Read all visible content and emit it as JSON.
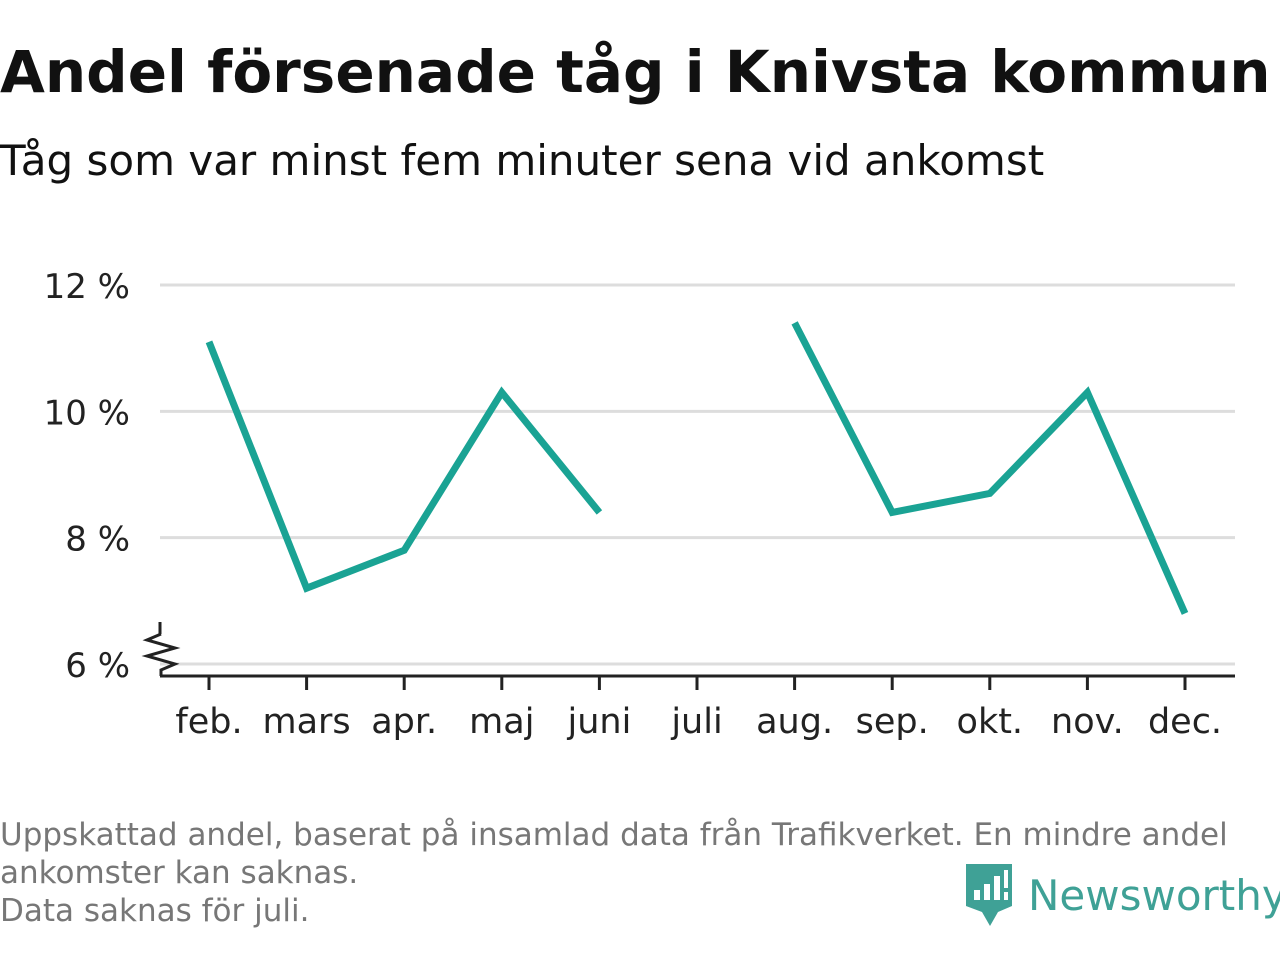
{
  "title": "Andel försenade tåg i Knivsta kommun",
  "subtitle": "Tåg som var minst fem minuter sena vid ankomst",
  "chart_data": {
    "type": "line",
    "categories": [
      "feb.",
      "mars",
      "apr.",
      "maj",
      "juni",
      "juli",
      "aug.",
      "sep.",
      "okt.",
      "nov.",
      "dec."
    ],
    "series": [
      {
        "values": [
          11.1,
          7.2,
          7.8,
          10.3,
          8.4,
          null,
          11.4,
          8.4,
          8.7,
          10.3,
          6.8
        ]
      }
    ],
    "y_ticks": [
      6,
      8,
      10,
      12
    ],
    "y_tick_labels": [
      "6 %",
      "8 %",
      "10 %",
      "12 %"
    ],
    "ylim": [
      6,
      12
    ],
    "xlabel": "",
    "ylabel": "",
    "grid": true,
    "axis_break": true,
    "line_color": "#1aa394",
    "grid_color": "#dddddd"
  },
  "footnote": {
    "line1": "Uppskattad andel, baserat på insamlad data från Trafikverket. En mindre andel",
    "line2": "ankomster kan saknas.",
    "line3": "Data saknas för juli."
  },
  "brand": {
    "name": "Newsworthy",
    "icon": "newsworthy-logo-icon",
    "color": "#3fa196"
  }
}
